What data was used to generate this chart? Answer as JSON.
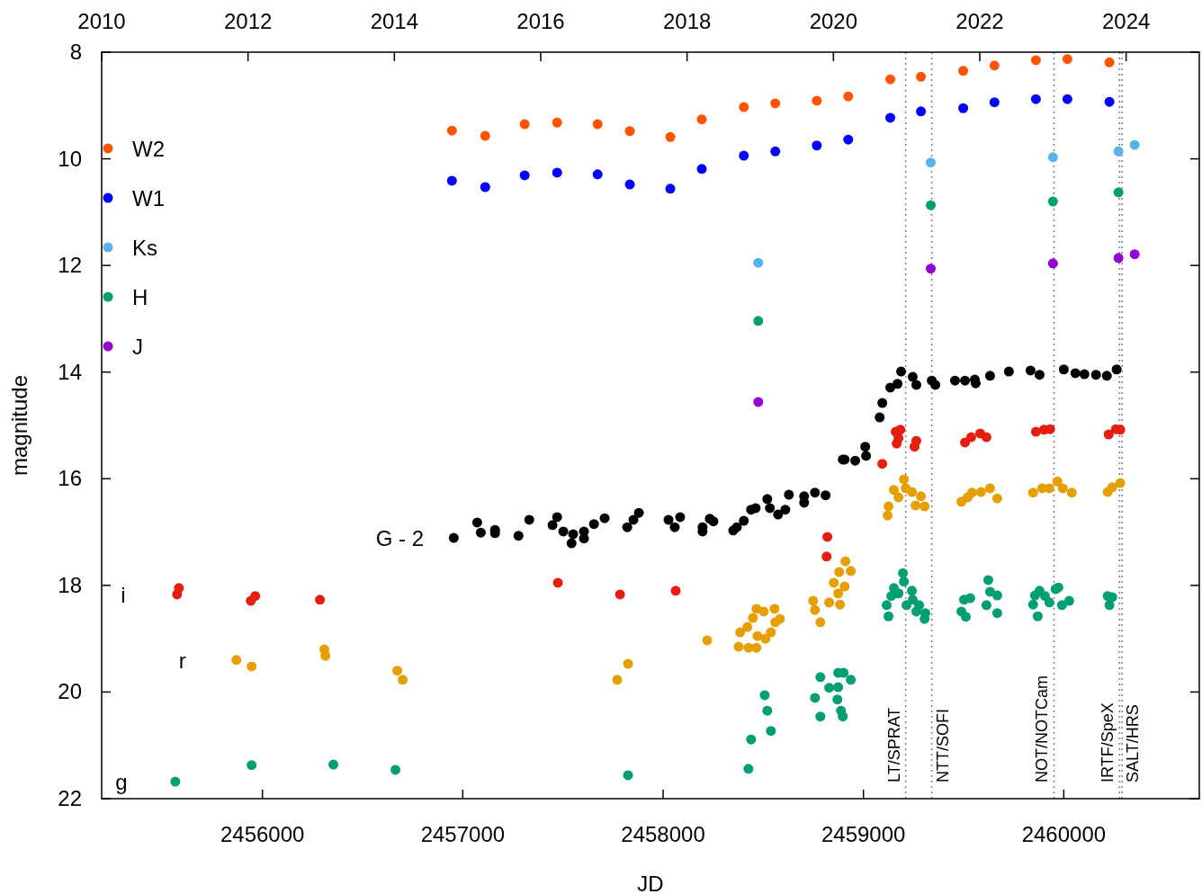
{
  "chart_data": {
    "type": "scatter",
    "xlabel": "JD",
    "ylabel": "magnitude",
    "xlim": [
      2455197.5,
      2460676.5
    ],
    "xticks": [
      2456000,
      2457000,
      2458000,
      2459000,
      2460000
    ],
    "ylim": [
      22,
      8
    ],
    "yticks": [
      8,
      10,
      12,
      14,
      16,
      18,
      20,
      22
    ],
    "x2lim": [
      2010,
      2025
    ],
    "x2ticks": [
      2010,
      2012,
      2014,
      2016,
      2018,
      2020,
      2022,
      2024
    ],
    "marker": "circle",
    "legend": "top left",
    "grid": false,
    "series": [
      {
        "name": "W2",
        "color": "#ff5500",
        "x": [
          2456946,
          2457112,
          2457309,
          2457471,
          2457673,
          2457834,
          2458036,
          2458193,
          2458403,
          2458560,
          2458767,
          2458924,
          2459134,
          2459287,
          2459498,
          2459654,
          2459861,
          2460018,
          2460228
        ],
        "values": [
          9.47,
          9.57,
          9.35,
          9.32,
          9.35,
          9.48,
          9.59,
          9.26,
          9.03,
          8.96,
          8.91,
          8.83,
          8.51,
          8.46,
          8.35,
          8.25,
          8.15,
          8.13,
          8.19
        ]
      },
      {
        "name": "W1",
        "color": "#0000ff",
        "x": [
          2456946,
          2457112,
          2457309,
          2457471,
          2457673,
          2457834,
          2458036,
          2458193,
          2458403,
          2458560,
          2458767,
          2458924,
          2459134,
          2459287,
          2459498,
          2459654,
          2459861,
          2460018,
          2460228
        ],
        "values": [
          10.41,
          10.53,
          10.31,
          10.26,
          10.29,
          10.48,
          10.56,
          10.19,
          9.94,
          9.86,
          9.75,
          9.64,
          9.23,
          9.11,
          9.05,
          8.94,
          8.88,
          8.88,
          8.93
        ]
      },
      {
        "name": "Ks",
        "color": "#56b4e9",
        "x": [
          2458475,
          2459336,
          2459946,
          2460273,
          2460354
        ],
        "values": [
          11.95,
          10.07,
          9.97,
          9.86,
          9.74
        ]
      },
      {
        "name": "H",
        "color": "#009e73",
        "x": [
          2458475,
          2459336,
          2459946,
          2460273
        ],
        "values": [
          13.04,
          10.87,
          10.8,
          10.63
        ]
      },
      {
        "name": "J",
        "color": "#9400d3",
        "x": [
          2458475,
          2459336,
          2459946,
          2460273,
          2460354
        ],
        "values": [
          14.56,
          12.06,
          11.96,
          11.86,
          11.79
        ]
      },
      {
        "name": "G - 2",
        "color": "#000000",
        "x": [
          2456955,
          2457072,
          2457090,
          2457161,
          2457161,
          2457278,
          2457332,
          2457448,
          2457471,
          2457502,
          2457551,
          2457543,
          2457605,
          2457605,
          2457655,
          2457708,
          2457821,
          2457852,
          2457879,
          2458027,
          2458058,
          2458085,
          2458197,
          2458197,
          2458233,
          2458251,
          2458350,
          2458368,
          2458403,
          2458439,
          2458462,
          2458520,
          2458533,
          2458574,
          2458610,
          2458628,
          2458704,
          2458704,
          2458758,
          2458811,
          2458897,
          2458906,
          2458959,
          2459009,
          2459013,
          2459081,
          2459094,
          2459134,
          2459170,
          2459188,
          2459246,
          2459264,
          2459341,
          2459359,
          2459457,
          2459507,
          2459556,
          2459560,
          2459632,
          2459726,
          2459834,
          2459879,
          2460000,
          2460058,
          2460103,
          2460161,
          2460215,
          2460264
        ],
        "values": [
          17.11,
          16.82,
          17.01,
          16.96,
          17.02,
          17.07,
          16.77,
          16.87,
          16.72,
          16.99,
          17.04,
          17.21,
          16.99,
          17.12,
          16.85,
          16.74,
          16.91,
          16.77,
          16.64,
          16.77,
          16.91,
          16.72,
          16.91,
          16.99,
          16.75,
          16.8,
          16.97,
          16.91,
          16.79,
          16.58,
          16.55,
          16.38,
          16.55,
          16.67,
          16.58,
          16.3,
          16.33,
          16.45,
          16.26,
          16.31,
          15.64,
          15.64,
          15.66,
          15.4,
          15.57,
          14.85,
          14.58,
          14.29,
          14.22,
          13.99,
          14.09,
          14.24,
          14.16,
          14.24,
          14.16,
          14.16,
          14.14,
          14.21,
          14.07,
          13.99,
          13.97,
          14.05,
          13.95,
          14.02,
          14.04,
          14.05,
          14.07,
          13.95
        ]
      },
      {
        "name": "i",
        "color": "#e51e10",
        "x": [
          2455574,
          2455583,
          2455942,
          2455964,
          2456287,
          2457475,
          2457785,
          2458063,
          2458816,
          2458820,
          2459094,
          2459161,
          2459175,
          2459166,
          2459184,
          2459264,
          2459255,
          2459507,
          2459538,
          2459583,
          2459614,
          2459861,
          2459901,
          2459932,
          2460224,
          2460260,
          2460282
        ],
        "values": [
          18.17,
          18.05,
          18.29,
          18.2,
          18.27,
          17.95,
          18.17,
          18.1,
          17.46,
          17.09,
          15.72,
          15.12,
          15.24,
          15.34,
          15.08,
          15.29,
          15.4,
          15.32,
          15.22,
          15.15,
          15.22,
          15.12,
          15.08,
          15.07,
          15.17,
          15.07,
          15.08
        ]
      },
      {
        "name": "r",
        "color": "#e69f00",
        "x": [
          2455870,
          2455946,
          2456309,
          2456314,
          2456673,
          2456700,
          2457771,
          2457825,
          2458220,
          2458377,
          2458385,
          2458421,
          2458426,
          2458448,
          2458466,
          2458466,
          2458471,
          2458502,
          2458511,
          2458538,
          2458556,
          2458560,
          2458583,
          2458749,
          2458758,
          2458785,
          2458829,
          2458852,
          2458874,
          2458883,
          2458906,
          2458879,
          2458910,
          2458937,
          2459121,
          2459125,
          2459152,
          2459175,
          2459202,
          2459211,
          2459242,
          2459260,
          2459287,
          2459305,
          2459489,
          2459520,
          2459542,
          2459587,
          2459632,
          2459668,
          2459847,
          2459892,
          2459928,
          2459968,
          2459995,
          2460040,
          2460219,
          2460242,
          2460282
        ],
        "values": [
          19.4,
          19.52,
          19.2,
          19.32,
          19.6,
          19.77,
          19.77,
          19.47,
          19.03,
          19.15,
          18.88,
          18.78,
          19.17,
          18.61,
          18.44,
          19.17,
          18.95,
          18.49,
          19.0,
          18.88,
          18.44,
          18.69,
          18.63,
          18.29,
          18.46,
          18.69,
          18.32,
          17.95,
          18.15,
          18.36,
          18.02,
          17.75,
          17.55,
          17.73,
          16.69,
          16.52,
          16.21,
          16.35,
          16.01,
          16.18,
          16.25,
          16.5,
          16.33,
          16.52,
          16.43,
          16.35,
          16.26,
          16.25,
          16.18,
          16.37,
          16.26,
          16.18,
          16.18,
          16.05,
          16.18,
          16.26,
          16.25,
          16.16,
          16.08
        ]
      },
      {
        "name": "g",
        "color": "#009e73",
        "x": [
          2455565,
          2455946,
          2456354,
          2456664,
          2457825,
          2458426,
          2458439,
          2458538,
          2458520,
          2458507,
          2458758,
          2458785,
          2458785,
          2458829,
          2458874,
          2458901,
          2458874,
          2458870,
          2458888,
          2458897,
          2458937,
          2459125,
          2459116,
          2459139,
          2459152,
          2459175,
          2459197,
          2459202,
          2459215,
          2459242,
          2459246,
          2459264,
          2459278,
          2459305,
          2459309,
          2459489,
          2459502,
          2459533,
          2459511,
          2459623,
          2459632,
          2459614,
          2459668,
          2459668,
          2459870,
          2459847,
          2459856,
          2459879,
          2459906,
          2459928,
          2459959,
          2459973,
          2459991,
          2460027,
          2460219,
          2460228,
          2460242
        ],
        "values": [
          21.68,
          21.37,
          21.36,
          21.46,
          21.56,
          21.44,
          20.89,
          20.73,
          20.35,
          20.06,
          20.11,
          20.46,
          19.72,
          19.92,
          19.64,
          19.64,
          19.91,
          20.14,
          20.35,
          20.46,
          19.77,
          18.58,
          18.37,
          18.2,
          18.05,
          18.15,
          17.77,
          17.93,
          18.37,
          18.1,
          18.27,
          18.49,
          18.37,
          18.63,
          18.52,
          18.49,
          18.27,
          18.24,
          18.59,
          17.9,
          18.12,
          18.37,
          18.19,
          18.52,
          18.58,
          18.36,
          18.19,
          18.1,
          18.2,
          18.32,
          18.07,
          18.04,
          18.37,
          18.29,
          18.2,
          18.37,
          18.22
        ]
      }
    ],
    "ref_lines": [
      {
        "axis": "x",
        "value": 2459211,
        "label": "LT/SPRAT",
        "color": "#808080",
        "line_style": "dotted"
      },
      {
        "axis": "x",
        "value": 2459341,
        "label": "NTT/SOFI",
        "color": "#808080",
        "line_style": "dotted"
      },
      {
        "axis": "x",
        "value": 2459951,
        "label": "NOT/NOTCam",
        "color": "#808080",
        "line_style": "dotted"
      },
      {
        "axis": "x",
        "value": 2460278,
        "label": "IRTF/SpeX",
        "color": "#808080",
        "line_style": "dotted"
      },
      {
        "axis": "x",
        "value": 2460291,
        "label": "SALT/HRS",
        "color": "#808080",
        "line_style": "dotted"
      }
    ]
  }
}
